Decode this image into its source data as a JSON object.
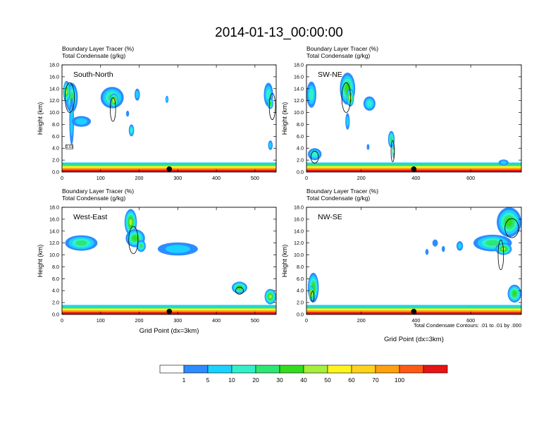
{
  "page_title": "2014-01-13_00:00:00",
  "colors": {
    "scale": [
      "#ffffff",
      "#2d8cff",
      "#19d2ff",
      "#33f0c8",
      "#2ee673",
      "#33dc1e",
      "#a5f03c",
      "#fff51e",
      "#ffd21e",
      "#ffa00f",
      "#ff5a14",
      "#e61414"
    ],
    "ground": "#d21e14",
    "contour": "#000000",
    "station": "#000000"
  },
  "colorbar": {
    "labels": [
      "1",
      "5",
      "10",
      "20",
      "30",
      "40",
      "50",
      "60",
      "70",
      "100"
    ]
  },
  "footnote": "Total Condensate Contours: .01 to .01 by .000",
  "chart_data": [
    {
      "type": "heatmap",
      "panel_label": "South-North",
      "title_line1": "Boundary Layer Tracer   (%)",
      "title_line2": "Total Condensate   (g/kg)",
      "ylabel": "Height (km)",
      "xlabel": "",
      "xlim": [
        0,
        555
      ],
      "ylim": [
        0,
        18
      ],
      "xticks": [
        0,
        100,
        200,
        300,
        400,
        500
      ],
      "yticks": [
        "0.0",
        "2.0",
        "4.0",
        "6.0",
        "8.0",
        "10.0",
        "12.0",
        "14.0",
        "16.0",
        "18.0"
      ],
      "station_x": 278,
      "inline_label": "0.01",
      "clouds": [
        {
          "x": 25,
          "y": 12.5,
          "rx": 16,
          "ry": 2.5,
          "level": 4
        },
        {
          "x": 12,
          "y": 13.5,
          "rx": 9,
          "ry": 1.8,
          "level": 6
        },
        {
          "x": 25,
          "y": 8.5,
          "rx": 6,
          "ry": 4.0,
          "level": 2
        },
        {
          "x": 50,
          "y": 8.5,
          "rx": 25,
          "ry": 0.9,
          "level": 2
        },
        {
          "x": 130,
          "y": 12.5,
          "rx": 30,
          "ry": 1.8,
          "level": 4
        },
        {
          "x": 135,
          "y": 12.0,
          "rx": 11,
          "ry": 1.2,
          "level": 7
        },
        {
          "x": 195,
          "y": 13.0,
          "rx": 7,
          "ry": 1.0,
          "level": 2
        },
        {
          "x": 170,
          "y": 9.8,
          "rx": 4,
          "ry": 0.5,
          "level": 1
        },
        {
          "x": 180,
          "y": 7.0,
          "rx": 7,
          "ry": 1.0,
          "level": 3
        },
        {
          "x": 272,
          "y": 12.2,
          "rx": 4,
          "ry": 0.6,
          "level": 2
        },
        {
          "x": 535,
          "y": 13.0,
          "rx": 12,
          "ry": 2.0,
          "level": 3
        },
        {
          "x": 540,
          "y": 11.5,
          "rx": 8,
          "ry": 0.9,
          "level": 5
        },
        {
          "x": 540,
          "y": 4.5,
          "rx": 6,
          "ry": 0.8,
          "level": 2
        }
      ],
      "contours": [
        {
          "x": 20,
          "y": 12.5,
          "rx": 12,
          "ry": 2.5
        },
        {
          "x": 132,
          "y": 10.5,
          "rx": 7,
          "ry": 2.0
        },
        {
          "x": 545,
          "y": 11.0,
          "rx": 8,
          "ry": 2.2
        }
      ]
    },
    {
      "type": "heatmap",
      "panel_label": "SW-NE",
      "title_line1": "Boundary Layer Tracer   (%)",
      "title_line2": "Total Condensate   (g/kg)",
      "ylabel": "Height (km)",
      "xlabel": "",
      "xlim": [
        0,
        785
      ],
      "ylim": [
        0,
        18
      ],
      "xticks": [
        0,
        200,
        400,
        600
      ],
      "yticks": [
        "0.0",
        "2.0",
        "4.0",
        "6.0",
        "8.0",
        "10.0",
        "12.0",
        "14.0",
        "16.0",
        "18.0"
      ],
      "station_x": 392,
      "inline_label": "",
      "clouds": [
        {
          "x": 18,
          "y": 13.0,
          "rx": 18,
          "ry": 2.2,
          "level": 3
        },
        {
          "x": 150,
          "y": 14.0,
          "rx": 28,
          "ry": 2.7,
          "level": 5
        },
        {
          "x": 160,
          "y": 12.5,
          "rx": 14,
          "ry": 1.5,
          "level": 7
        },
        {
          "x": 230,
          "y": 11.5,
          "rx": 22,
          "ry": 1.2,
          "level": 3
        },
        {
          "x": 150,
          "y": 8.5,
          "rx": 8,
          "ry": 1.4,
          "level": 2
        },
        {
          "x": 310,
          "y": 5.5,
          "rx": 12,
          "ry": 1.4,
          "level": 4
        },
        {
          "x": 318,
          "y": 3.5,
          "rx": 5,
          "ry": 1.2,
          "level": 7
        },
        {
          "x": 225,
          "y": 4.2,
          "rx": 5,
          "ry": 0.5,
          "level": 1
        },
        {
          "x": 30,
          "y": 3.0,
          "rx": 25,
          "ry": 1.0,
          "level": 3
        },
        {
          "x": 720,
          "y": 1.6,
          "rx": 18,
          "ry": 0.5,
          "level": 2
        }
      ],
      "contours": [
        {
          "x": 145,
          "y": 12.5,
          "rx": 16,
          "ry": 2.5
        },
        {
          "x": 315,
          "y": 3.5,
          "rx": 6,
          "ry": 1.8
        },
        {
          "x": 30,
          "y": 2.5,
          "rx": 14,
          "ry": 1.0
        }
      ]
    },
    {
      "type": "heatmap",
      "panel_label": "West-East",
      "title_line1": "Boundary Layer Tracer   (%)",
      "title_line2": "Total Condensate   (g/kg)",
      "ylabel": "Height (km)",
      "xlabel": "Grid Point (dx=3km)",
      "xlim": [
        0,
        555
      ],
      "ylim": [
        0,
        18
      ],
      "xticks": [
        0,
        100,
        200,
        300,
        400,
        500
      ],
      "yticks": [
        "0.0",
        "2.0",
        "4.0",
        "6.0",
        "8.0",
        "10.0",
        "12.0",
        "14.0",
        "16.0",
        "18.0"
      ],
      "station_x": 278,
      "inline_label": "",
      "clouds": [
        {
          "x": 50,
          "y": 12.0,
          "rx": 42,
          "ry": 1.3,
          "level": 4
        },
        {
          "x": 178,
          "y": 15.5,
          "rx": 16,
          "ry": 2.2,
          "level": 6
        },
        {
          "x": 190,
          "y": 12.8,
          "rx": 25,
          "ry": 1.5,
          "level": 5
        },
        {
          "x": 205,
          "y": 11.5,
          "rx": 12,
          "ry": 1.0,
          "level": 4
        },
        {
          "x": 300,
          "y": 11.0,
          "rx": 52,
          "ry": 1.1,
          "level": 2
        },
        {
          "x": 460,
          "y": 4.5,
          "rx": 20,
          "ry": 1.0,
          "level": 5
        },
        {
          "x": 540,
          "y": 3.0,
          "rx": 15,
          "ry": 1.3,
          "level": 6
        }
      ],
      "contours": [
        {
          "x": 185,
          "y": 12.5,
          "rx": 12,
          "ry": 2.3
        },
        {
          "x": 460,
          "y": 4.0,
          "rx": 10,
          "ry": 0.6
        }
      ]
    },
    {
      "type": "heatmap",
      "panel_label": "NW-SE",
      "title_line1": "Boundary Layer Tracer   (%)",
      "title_line2": "Total Condensate   (g/kg)",
      "ylabel": "Height (km)",
      "xlabel": "Grid Point (dx=3km)",
      "xlim": [
        0,
        785
      ],
      "ylim": [
        0,
        18
      ],
      "xticks": [
        0,
        200,
        400,
        600
      ],
      "yticks": [
        "0.0",
        "2.0",
        "4.0",
        "6.0",
        "8.0",
        "10.0",
        "12.0",
        "14.0",
        "16.0",
        "18.0"
      ],
      "station_x": 392,
      "inline_label": "",
      "clouds": [
        {
          "x": 25,
          "y": 4.5,
          "rx": 20,
          "ry": 2.5,
          "level": 5
        },
        {
          "x": 18,
          "y": 3.5,
          "rx": 9,
          "ry": 1.3,
          "level": 9
        },
        {
          "x": 740,
          "y": 15.5,
          "rx": 45,
          "ry": 2.5,
          "level": 5
        },
        {
          "x": 680,
          "y": 12.0,
          "rx": 70,
          "ry": 1.4,
          "level": 4
        },
        {
          "x": 720,
          "y": 11.0,
          "rx": 30,
          "ry": 1.0,
          "level": 6
        },
        {
          "x": 560,
          "y": 11.5,
          "rx": 12,
          "ry": 0.8,
          "level": 2
        },
        {
          "x": 470,
          "y": 12.0,
          "rx": 10,
          "ry": 0.6,
          "level": 1
        },
        {
          "x": 440,
          "y": 10.5,
          "rx": 6,
          "ry": 0.5,
          "level": 1
        },
        {
          "x": 760,
          "y": 3.5,
          "rx": 25,
          "ry": 1.5,
          "level": 5
        },
        {
          "x": 500,
          "y": 11.0,
          "rx": 6,
          "ry": 0.5,
          "level": 1
        }
      ],
      "contours": [
        {
          "x": 710,
          "y": 10.0,
          "rx": 10,
          "ry": 2.5
        },
        {
          "x": 750,
          "y": 14.5,
          "rx": 25,
          "ry": 1.6
        },
        {
          "x": 22,
          "y": 3.0,
          "rx": 6,
          "ry": 0.9
        }
      ]
    }
  ]
}
